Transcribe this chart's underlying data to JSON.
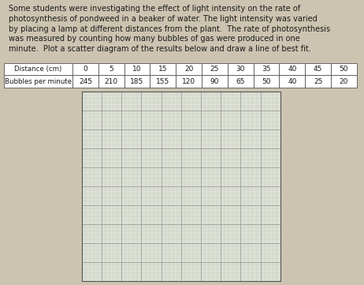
{
  "description_lines": [
    "Some students were investigating the effect of light intensity on the rate of",
    "photosynthesis of pondweed in a beaker of water. The light intensity was varied",
    "by placing a lamp at different distances from the plant.  The rate of photosynthesis",
    "was measured by counting how many bubbles of gas were produced in one",
    "minute.  Plot a scatter diagram of the results below and draw a line of best fit."
  ],
  "table_row1": [
    "Distance (cm)",
    "0",
    "5",
    "10",
    "15",
    "20",
    "25",
    "30",
    "35",
    "40",
    "45",
    "50"
  ],
  "table_row2": [
    "Bubbles per minute",
    "245",
    "210",
    "185",
    "155",
    "120",
    "90",
    "65",
    "50",
    "40",
    "25",
    "20"
  ],
  "bg_color": "#ccc4b0",
  "text_box_color": "#adbfcd",
  "grid_bg_color": "#dde0d5",
  "grid_minor_color": "#b8bdb0",
  "grid_major_color": "#9ba09a",
  "table_bg": "#ffffff",
  "table_border": "#555555",
  "text_color": "#1a1a1a",
  "desc_fontsize": 7.0,
  "table_fontsize": 6.5
}
